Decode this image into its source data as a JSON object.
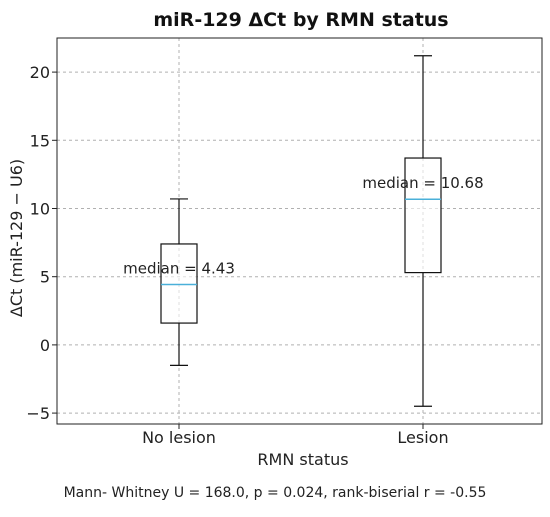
{
  "chart_data": {
    "type": "box",
    "title": "miR-129 ΔCt by RMN status",
    "xlabel": "RMN status",
    "ylabel": "ΔCt (miR-129 − U6)",
    "ylim": [
      -5.8,
      22.5
    ],
    "yticks": [
      -5,
      0,
      5,
      10,
      15,
      20
    ],
    "ytick_labels": [
      "−5",
      "0",
      "5",
      "10",
      "15",
      "20"
    ],
    "grid": true,
    "categories": [
      "No lesion",
      "Lesion"
    ],
    "boxes": [
      {
        "category": "No lesion",
        "whisker_low": -1.5,
        "q1": 1.6,
        "median": 4.43,
        "q3": 7.4,
        "whisker_high": 10.7,
        "median_label": "median = 4.43"
      },
      {
        "category": "Lesion",
        "whisker_low": -4.5,
        "q1": 5.3,
        "median": 10.68,
        "q3": 13.7,
        "whisker_high": 21.2,
        "median_label": "median = 10.68"
      }
    ],
    "colors": {
      "box": "#111111",
      "median": "#4ab0d9",
      "grid": "#b0b0b0"
    }
  },
  "footer": "Mann- Whitney U = 168.0, p = 0.024, rank-biserial r = -0.55"
}
